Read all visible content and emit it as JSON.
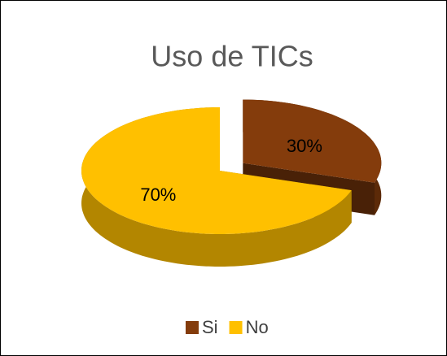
{
  "chart_data": {
    "type": "pie",
    "title": "Uso de TICs",
    "categories": [
      "Si",
      "No"
    ],
    "values": [
      30,
      70
    ],
    "value_labels": [
      "30%",
      "70%"
    ],
    "colors": [
      "#843c0c",
      "#ffc000"
    ],
    "legend": "bottom",
    "exploded": [
      true,
      false
    ]
  }
}
